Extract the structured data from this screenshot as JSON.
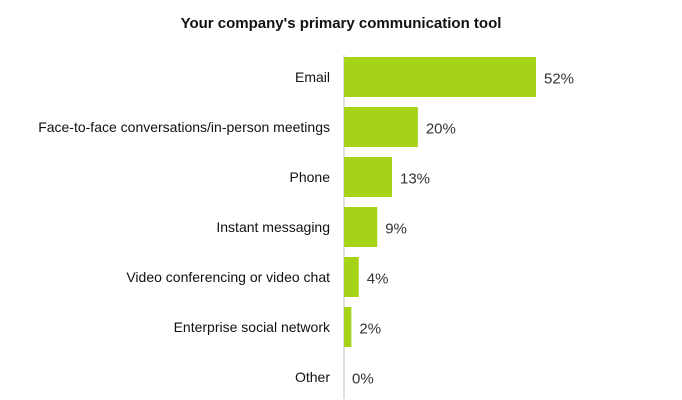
{
  "chart_data": {
    "type": "bar",
    "orientation": "horizontal",
    "title": "Your company's primary communication tool",
    "categories": [
      "Email",
      "Face-to-face conversations/in-person meetings",
      "Phone",
      "Instant messaging",
      "Video conferencing or video chat",
      "Enterprise social network",
      "Other"
    ],
    "values": [
      52,
      20,
      13,
      9,
      4,
      2,
      0
    ],
    "value_labels": [
      "52%",
      "20%",
      "13%",
      "9%",
      "4%",
      "2%",
      "0%"
    ],
    "unit": "%",
    "xlim": [
      0,
      52
    ],
    "grid": false,
    "legend": "none",
    "colors": {
      "bar": "#a4d317",
      "baseline": "#bdbdbd",
      "text": "#111111",
      "value_text": "#333333"
    }
  }
}
